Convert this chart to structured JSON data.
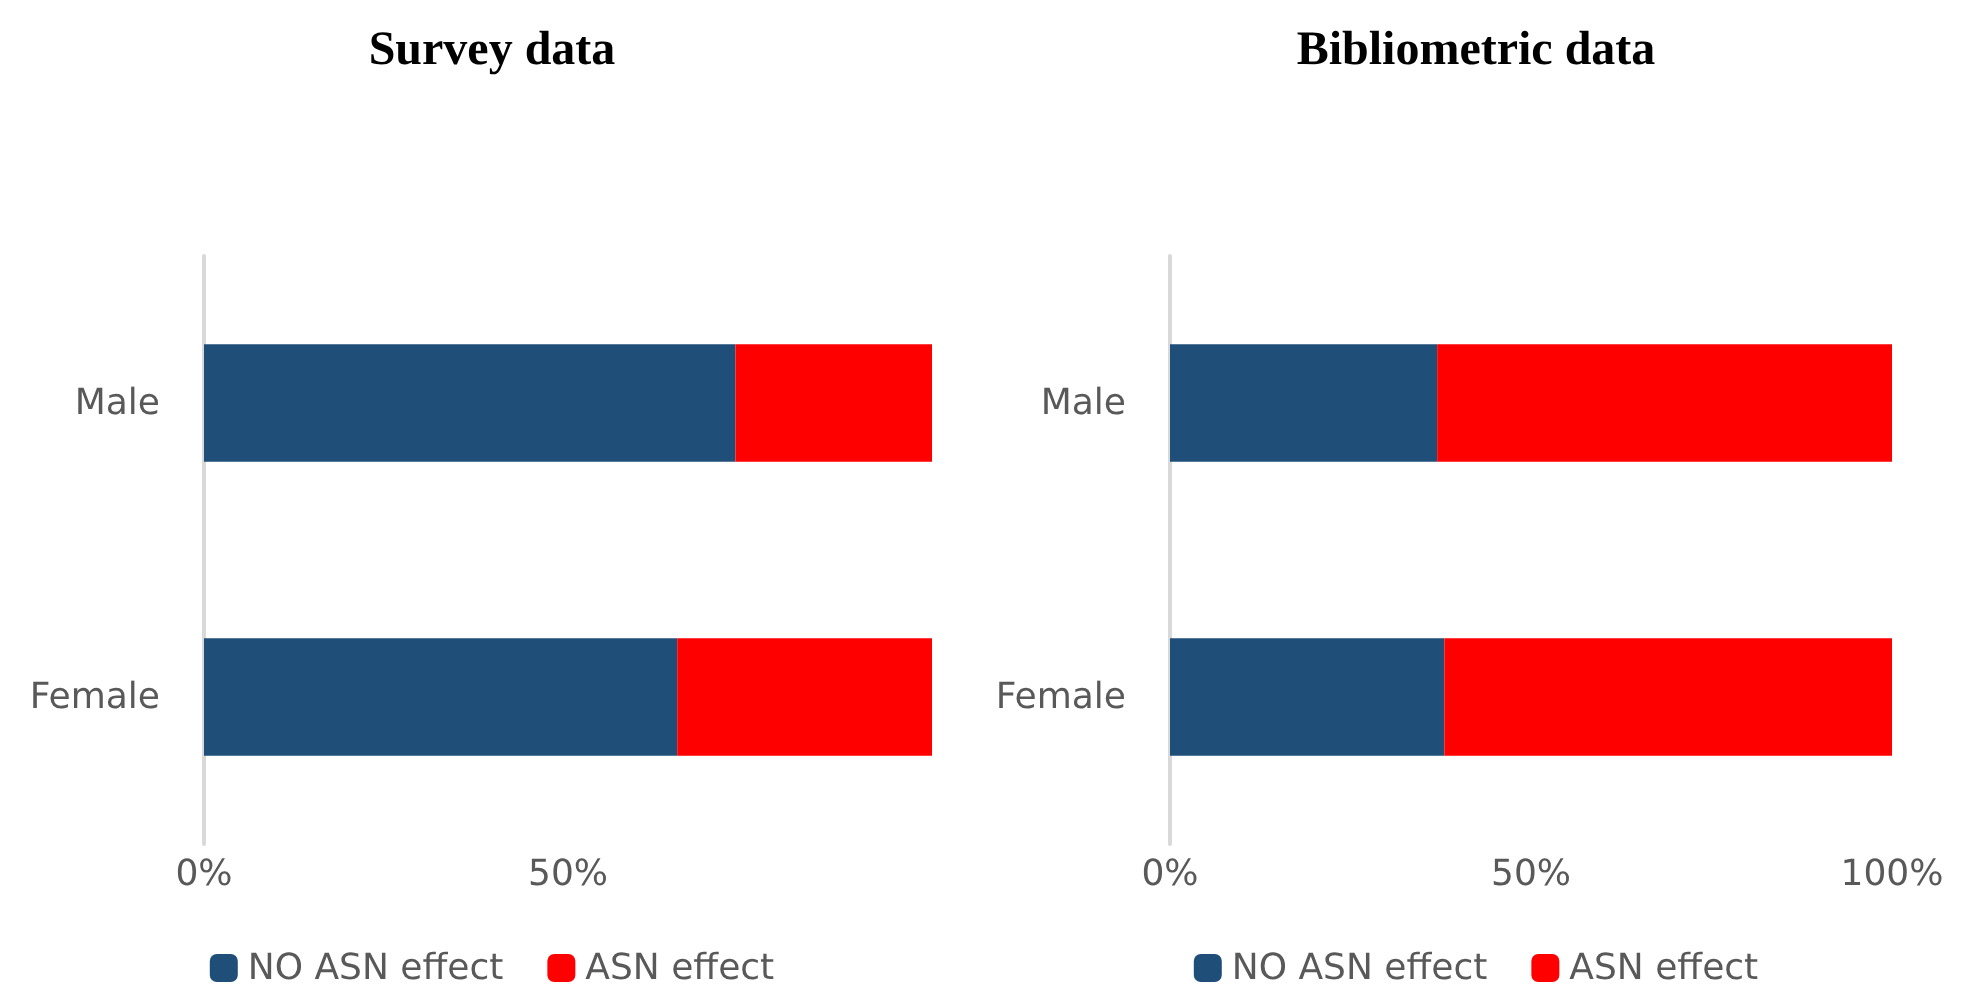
{
  "chart_data": [
    {
      "type": "bar",
      "title": "Survey data",
      "orientation": "horizontal",
      "stacked": true,
      "categories": [
        "Male",
        "Female"
      ],
      "series": [
        {
          "name": "NO ASN effect",
          "color": "#1f4e79",
          "values": [
            73,
            65
          ]
        },
        {
          "name": "ASN effect",
          "color": "#ff0000",
          "values": [
            27,
            35
          ]
        }
      ],
      "xlim": [
        0,
        100
      ],
      "xticks": [
        {
          "value": 0,
          "label": "0%"
        },
        {
          "value": 50,
          "label": "50%"
        }
      ],
      "grid": false,
      "legend": "bottom"
    },
    {
      "type": "bar",
      "title": "Bibliometric data",
      "orientation": "horizontal",
      "stacked": true,
      "categories": [
        "Male",
        "Female"
      ],
      "series": [
        {
          "name": "NO ASN effect",
          "color": "#1f4e79",
          "values": [
            37,
            38
          ]
        },
        {
          "name": "ASN effect",
          "color": "#ff0000",
          "values": [
            63,
            62
          ]
        }
      ],
      "xlim": [
        0,
        100
      ],
      "xticks": [
        {
          "value": 0,
          "label": "0%"
        },
        {
          "value": 50,
          "label": "50%"
        },
        {
          "value": 100,
          "label": "100%"
        }
      ],
      "grid": false,
      "legend": "bottom"
    }
  ]
}
